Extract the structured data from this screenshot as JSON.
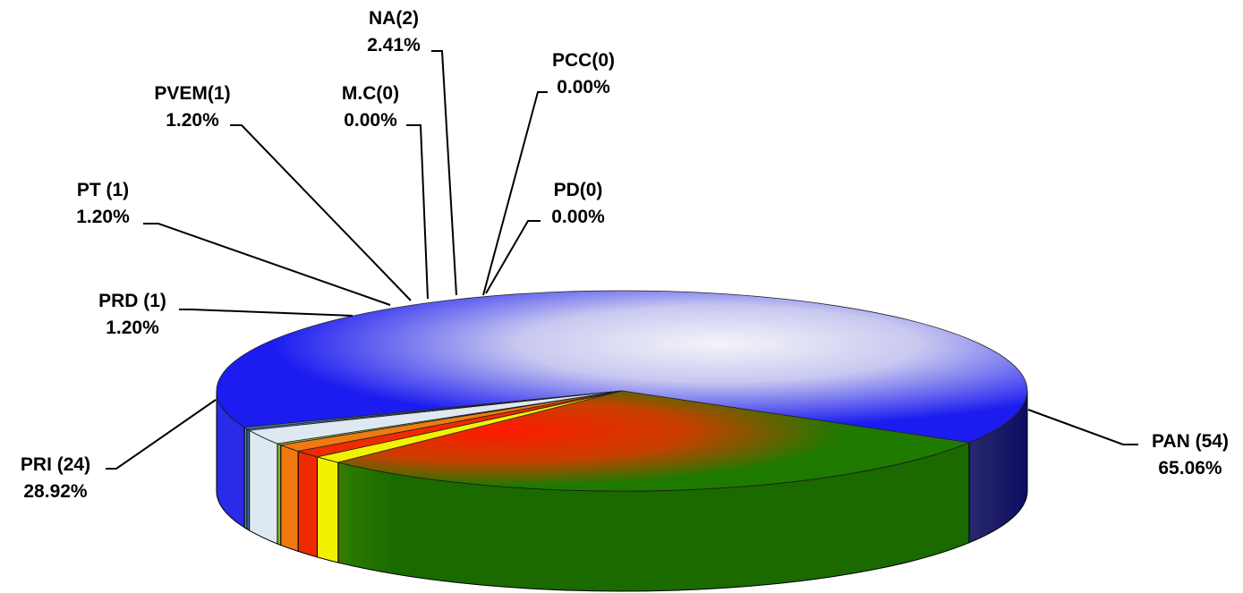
{
  "chart_data": {
    "type": "pie",
    "title": "",
    "slices": [
      {
        "name": "PAN (54)",
        "count": 54,
        "percent": "65.06%",
        "value": 65.06,
        "color": "#1a1ad8"
      },
      {
        "name": "PRI (24)",
        "count": 24,
        "percent": "28.92%",
        "value": 28.92,
        "color": "#1f7a00"
      },
      {
        "name": "PRD (1)",
        "count": 1,
        "percent": "1.20%",
        "value": 1.2,
        "color": "#f2f200"
      },
      {
        "name": "PT (1)",
        "count": 1,
        "percent": "1.20%",
        "value": 1.2,
        "color": "#ee2a00"
      },
      {
        "name": "PVEM(1)",
        "count": 1,
        "percent": "1.20%",
        "value": 1.2,
        "color": "#f07a10"
      },
      {
        "name": "M.C(0)",
        "count": 0,
        "percent": "0.00%",
        "value": 0.0,
        "color": "#8ab83a"
      },
      {
        "name": "NA(2)",
        "count": 2,
        "percent": "2.41%",
        "value": 2.41,
        "color": "#dde8f0"
      },
      {
        "name": "PCC(0)",
        "count": 0,
        "percent": "0.00%",
        "value": 0.0,
        "color": "#4a78b8"
      },
      {
        "name": "PD(0)",
        "count": 0,
        "percent": "0.00%",
        "value": 0.0,
        "color": "#5a88c0"
      }
    ]
  }
}
